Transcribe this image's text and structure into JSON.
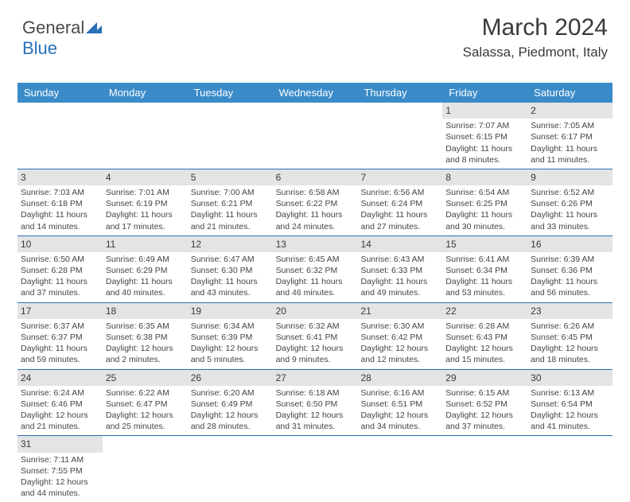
{
  "logo": {
    "part1": "General",
    "part2": "Blue"
  },
  "title": "March 2024",
  "location": "Salassa, Piedmont, Italy",
  "weekdays": [
    "Sunday",
    "Monday",
    "Tuesday",
    "Wednesday",
    "Thursday",
    "Friday",
    "Saturday"
  ],
  "colors": {
    "header_bg": "#3b8bc9",
    "accent": "#2970b8",
    "daynum_bg": "#e4e4e4",
    "text": "#3a3a3a"
  },
  "weeks": [
    [
      {
        "n": "",
        "sr": "",
        "ss": "",
        "dl": ""
      },
      {
        "n": "",
        "sr": "",
        "ss": "",
        "dl": ""
      },
      {
        "n": "",
        "sr": "",
        "ss": "",
        "dl": ""
      },
      {
        "n": "",
        "sr": "",
        "ss": "",
        "dl": ""
      },
      {
        "n": "",
        "sr": "",
        "ss": "",
        "dl": ""
      },
      {
        "n": "1",
        "sr": "Sunrise: 7:07 AM",
        "ss": "Sunset: 6:15 PM",
        "dl": "Daylight: 11 hours and 8 minutes."
      },
      {
        "n": "2",
        "sr": "Sunrise: 7:05 AM",
        "ss": "Sunset: 6:17 PM",
        "dl": "Daylight: 11 hours and 11 minutes."
      }
    ],
    [
      {
        "n": "3",
        "sr": "Sunrise: 7:03 AM",
        "ss": "Sunset: 6:18 PM",
        "dl": "Daylight: 11 hours and 14 minutes."
      },
      {
        "n": "4",
        "sr": "Sunrise: 7:01 AM",
        "ss": "Sunset: 6:19 PM",
        "dl": "Daylight: 11 hours and 17 minutes."
      },
      {
        "n": "5",
        "sr": "Sunrise: 7:00 AM",
        "ss": "Sunset: 6:21 PM",
        "dl": "Daylight: 11 hours and 21 minutes."
      },
      {
        "n": "6",
        "sr": "Sunrise: 6:58 AM",
        "ss": "Sunset: 6:22 PM",
        "dl": "Daylight: 11 hours and 24 minutes."
      },
      {
        "n": "7",
        "sr": "Sunrise: 6:56 AM",
        "ss": "Sunset: 6:24 PM",
        "dl": "Daylight: 11 hours and 27 minutes."
      },
      {
        "n": "8",
        "sr": "Sunrise: 6:54 AM",
        "ss": "Sunset: 6:25 PM",
        "dl": "Daylight: 11 hours and 30 minutes."
      },
      {
        "n": "9",
        "sr": "Sunrise: 6:52 AM",
        "ss": "Sunset: 6:26 PM",
        "dl": "Daylight: 11 hours and 33 minutes."
      }
    ],
    [
      {
        "n": "10",
        "sr": "Sunrise: 6:50 AM",
        "ss": "Sunset: 6:28 PM",
        "dl": "Daylight: 11 hours and 37 minutes."
      },
      {
        "n": "11",
        "sr": "Sunrise: 6:49 AM",
        "ss": "Sunset: 6:29 PM",
        "dl": "Daylight: 11 hours and 40 minutes."
      },
      {
        "n": "12",
        "sr": "Sunrise: 6:47 AM",
        "ss": "Sunset: 6:30 PM",
        "dl": "Daylight: 11 hours and 43 minutes."
      },
      {
        "n": "13",
        "sr": "Sunrise: 6:45 AM",
        "ss": "Sunset: 6:32 PM",
        "dl": "Daylight: 11 hours and 46 minutes."
      },
      {
        "n": "14",
        "sr": "Sunrise: 6:43 AM",
        "ss": "Sunset: 6:33 PM",
        "dl": "Daylight: 11 hours and 49 minutes."
      },
      {
        "n": "15",
        "sr": "Sunrise: 6:41 AM",
        "ss": "Sunset: 6:34 PM",
        "dl": "Daylight: 11 hours and 53 minutes."
      },
      {
        "n": "16",
        "sr": "Sunrise: 6:39 AM",
        "ss": "Sunset: 6:36 PM",
        "dl": "Daylight: 11 hours and 56 minutes."
      }
    ],
    [
      {
        "n": "17",
        "sr": "Sunrise: 6:37 AM",
        "ss": "Sunset: 6:37 PM",
        "dl": "Daylight: 11 hours and 59 minutes."
      },
      {
        "n": "18",
        "sr": "Sunrise: 6:35 AM",
        "ss": "Sunset: 6:38 PM",
        "dl": "Daylight: 12 hours and 2 minutes."
      },
      {
        "n": "19",
        "sr": "Sunrise: 6:34 AM",
        "ss": "Sunset: 6:39 PM",
        "dl": "Daylight: 12 hours and 5 minutes."
      },
      {
        "n": "20",
        "sr": "Sunrise: 6:32 AM",
        "ss": "Sunset: 6:41 PM",
        "dl": "Daylight: 12 hours and 9 minutes."
      },
      {
        "n": "21",
        "sr": "Sunrise: 6:30 AM",
        "ss": "Sunset: 6:42 PM",
        "dl": "Daylight: 12 hours and 12 minutes."
      },
      {
        "n": "22",
        "sr": "Sunrise: 6:28 AM",
        "ss": "Sunset: 6:43 PM",
        "dl": "Daylight: 12 hours and 15 minutes."
      },
      {
        "n": "23",
        "sr": "Sunrise: 6:26 AM",
        "ss": "Sunset: 6:45 PM",
        "dl": "Daylight: 12 hours and 18 minutes."
      }
    ],
    [
      {
        "n": "24",
        "sr": "Sunrise: 6:24 AM",
        "ss": "Sunset: 6:46 PM",
        "dl": "Daylight: 12 hours and 21 minutes."
      },
      {
        "n": "25",
        "sr": "Sunrise: 6:22 AM",
        "ss": "Sunset: 6:47 PM",
        "dl": "Daylight: 12 hours and 25 minutes."
      },
      {
        "n": "26",
        "sr": "Sunrise: 6:20 AM",
        "ss": "Sunset: 6:49 PM",
        "dl": "Daylight: 12 hours and 28 minutes."
      },
      {
        "n": "27",
        "sr": "Sunrise: 6:18 AM",
        "ss": "Sunset: 6:50 PM",
        "dl": "Daylight: 12 hours and 31 minutes."
      },
      {
        "n": "28",
        "sr": "Sunrise: 6:16 AM",
        "ss": "Sunset: 6:51 PM",
        "dl": "Daylight: 12 hours and 34 minutes."
      },
      {
        "n": "29",
        "sr": "Sunrise: 6:15 AM",
        "ss": "Sunset: 6:52 PM",
        "dl": "Daylight: 12 hours and 37 minutes."
      },
      {
        "n": "30",
        "sr": "Sunrise: 6:13 AM",
        "ss": "Sunset: 6:54 PM",
        "dl": "Daylight: 12 hours and 41 minutes."
      }
    ],
    [
      {
        "n": "31",
        "sr": "Sunrise: 7:11 AM",
        "ss": "Sunset: 7:55 PM",
        "dl": "Daylight: 12 hours and 44 minutes."
      },
      {
        "n": "",
        "sr": "",
        "ss": "",
        "dl": ""
      },
      {
        "n": "",
        "sr": "",
        "ss": "",
        "dl": ""
      },
      {
        "n": "",
        "sr": "",
        "ss": "",
        "dl": ""
      },
      {
        "n": "",
        "sr": "",
        "ss": "",
        "dl": ""
      },
      {
        "n": "",
        "sr": "",
        "ss": "",
        "dl": ""
      },
      {
        "n": "",
        "sr": "",
        "ss": "",
        "dl": ""
      }
    ]
  ]
}
